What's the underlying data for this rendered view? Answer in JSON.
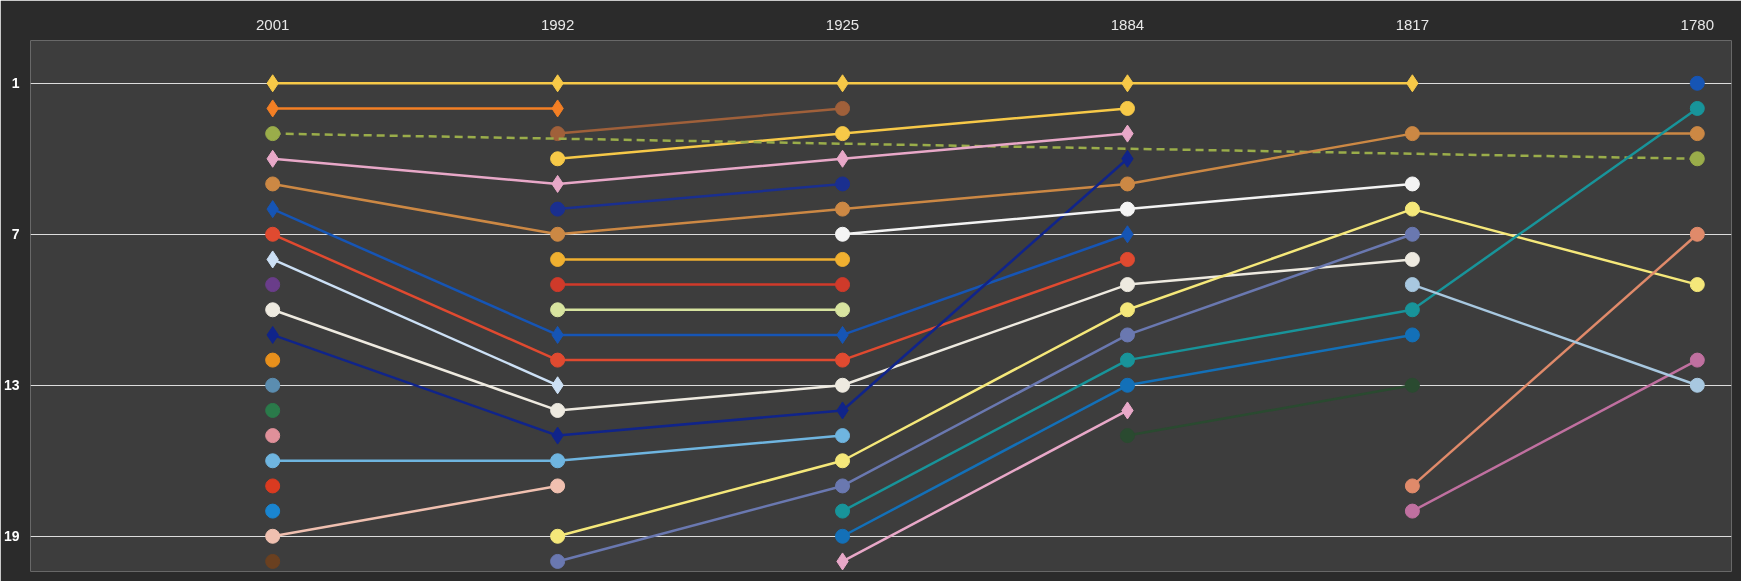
{
  "chart_data": {
    "type": "line",
    "categories": [
      "2001",
      "1992",
      "1925",
      "1884",
      "1817",
      "1780"
    ],
    "ylim": [
      20.4,
      -0.7
    ],
    "yticks": [
      1,
      7,
      13,
      19
    ],
    "grid": "y",
    "marker": "circle",
    "series": [
      {
        "color": "#f7c948",
        "marker": "diamond",
        "values": [
          1,
          1,
          1,
          1,
          1,
          null
        ]
      },
      {
        "color": "#f7c948",
        "values": [
          null,
          4,
          3,
          2,
          null,
          null
        ]
      },
      {
        "color": "#f47f24",
        "marker": "diamond",
        "values": [
          2,
          2,
          null,
          null,
          null,
          null
        ]
      },
      {
        "color": "#a0603a",
        "values": [
          null,
          3,
          2,
          null,
          null,
          null
        ]
      },
      {
        "color": "#9aad4a",
        "line_style": "dashed",
        "values": [
          3,
          null,
          null,
          null,
          null,
          4
        ]
      },
      {
        "color": "#e8a8c8",
        "marker": "diamond",
        "values": [
          4,
          5,
          4,
          3,
          null,
          null
        ]
      },
      {
        "color": "#cc8844",
        "values": [
          5,
          7,
          6,
          5,
          3,
          3
        ]
      },
      {
        "color": "#1655b5",
        "marker": "diamond",
        "values": [
          6,
          11,
          11,
          7,
          null,
          null
        ]
      },
      {
        "color": "#e04a30",
        "values": [
          7,
          12,
          12,
          8,
          null,
          null
        ]
      },
      {
        "color": "#cce0f5",
        "marker": "diamond",
        "values": [
          8,
          13,
          null,
          null,
          null,
          null
        ]
      },
      {
        "color": "#6a3d8a",
        "values": [
          9,
          null,
          null,
          null,
          null,
          null
        ]
      },
      {
        "color": "#eeeae0",
        "values": [
          10,
          14,
          13,
          9,
          8,
          null
        ]
      },
      {
        "color": "#10248a",
        "marker": "diamond",
        "values": [
          11,
          15,
          14,
          4,
          null,
          null
        ]
      },
      {
        "color": "#1a2f8f",
        "values": [
          null,
          6,
          5,
          null,
          null,
          null
        ]
      },
      {
        "color": "#e8901c",
        "values": [
          12,
          null,
          null,
          null,
          null,
          null
        ]
      },
      {
        "color": "#5b8db0",
        "values": [
          13,
          null,
          null,
          null,
          null,
          null
        ]
      },
      {
        "color": "#2a7a4a",
        "values": [
          14,
          null,
          null,
          null,
          null,
          null
        ]
      },
      {
        "color": "#e0909a",
        "values": [
          15,
          null,
          null,
          null,
          null,
          null
        ]
      },
      {
        "color": "#6fb5e0",
        "values": [
          16,
          16,
          15,
          null,
          null,
          null
        ]
      },
      {
        "color": "#d93a20",
        "values": [
          17,
          null,
          null,
          null,
          null,
          null
        ]
      },
      {
        "color": "#1a85d0",
        "values": [
          18,
          null,
          null,
          null,
          null,
          null
        ]
      },
      {
        "color": "#f0c0b0",
        "values": [
          19,
          17,
          null,
          null,
          null,
          null
        ]
      },
      {
        "color": "#6a4020",
        "values": [
          20,
          null,
          null,
          null,
          null,
          null
        ]
      },
      {
        "color": "#f0b030",
        "values": [
          null,
          8,
          8,
          null,
          null,
          null
        ]
      },
      {
        "color": "#d8e4a0",
        "values": [
          null,
          10,
          10,
          null,
          null,
          null
        ]
      },
      {
        "color": "#d03a2a",
        "values": [
          null,
          9,
          9,
          null,
          null,
          null
        ]
      },
      {
        "color": "#f5e87a",
        "values": [
          null,
          19,
          16,
          10,
          6,
          9
        ]
      },
      {
        "color": "#6a78b0",
        "values": [
          null,
          20,
          17,
          11,
          7,
          null
        ]
      },
      {
        "color": "#18949a",
        "values": [
          null,
          null,
          18,
          12,
          10,
          2
        ]
      },
      {
        "color": "#1370b8",
        "values": [
          null,
          null,
          19,
          13,
          11,
          null
        ]
      },
      {
        "color": "#e8a8c8",
        "marker": "diamond",
        "values": [
          null,
          null,
          20,
          14,
          null,
          null
        ]
      },
      {
        "color": "#f4f4f4",
        "values": [
          null,
          null,
          7,
          6,
          5,
          null
        ]
      },
      {
        "color": "#2a4a30",
        "values": [
          null,
          null,
          null,
          15,
          13,
          null
        ]
      },
      {
        "color": "#e08a6a",
        "values": [
          null,
          null,
          null,
          null,
          17,
          7
        ]
      },
      {
        "color": "#c070a0",
        "values": [
          null,
          null,
          null,
          null,
          18,
          12
        ]
      },
      {
        "color": "#1655b5",
        "values": [
          null,
          null,
          null,
          null,
          null,
          1
        ]
      },
      {
        "color": "#a8c8e0",
        "values": [
          null,
          null,
          null,
          null,
          9,
          13
        ]
      }
    ]
  }
}
